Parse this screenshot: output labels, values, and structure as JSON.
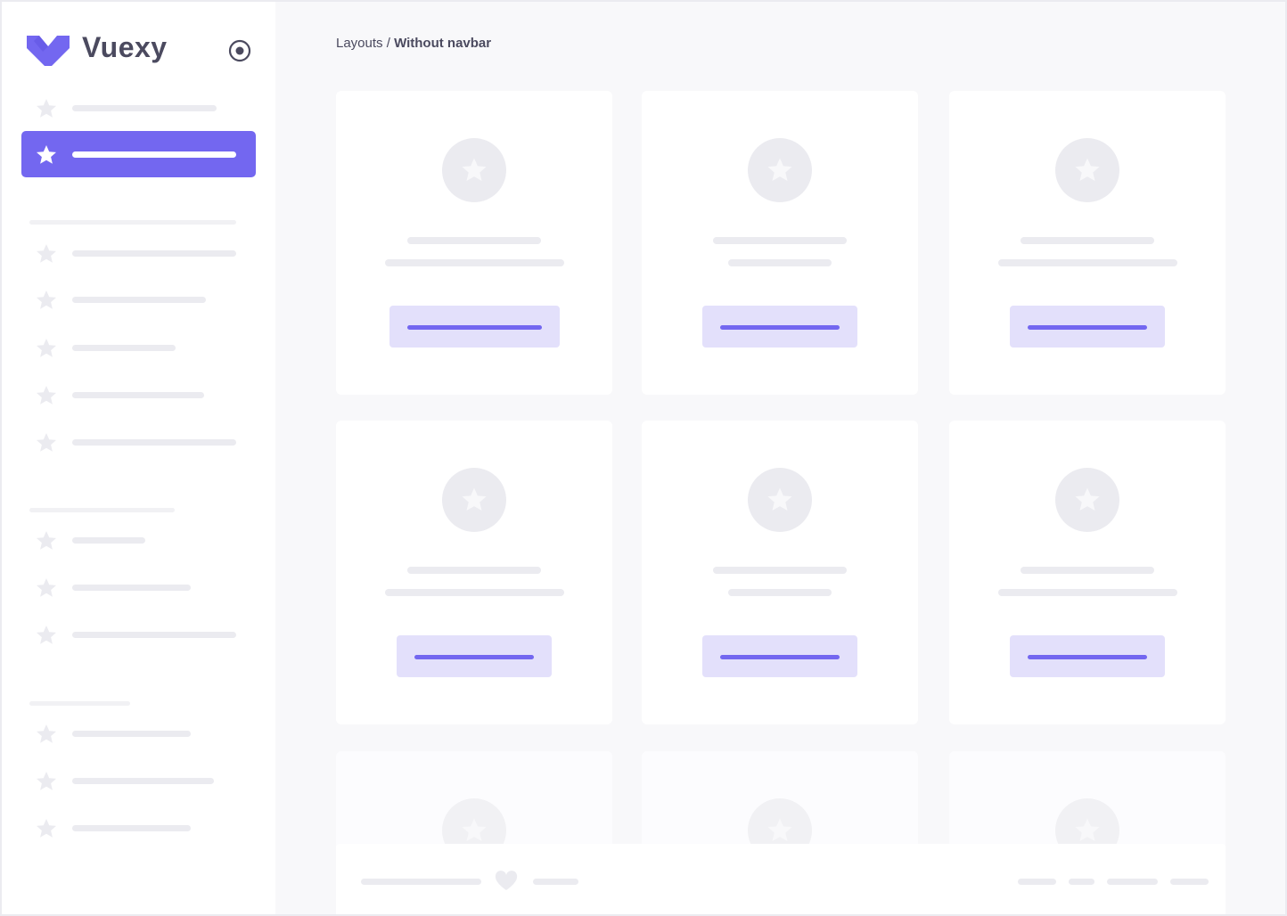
{
  "brand": {
    "name": "Vuexy",
    "logo_color": "#7367f0"
  },
  "breadcrumb": {
    "parent": "Layouts",
    "separator": " / ",
    "current": "Without navbar"
  },
  "colors": {
    "accent": "#7367f0",
    "accent_light": "#e3e0fb",
    "skeleton": "#ebebf0",
    "background": "#f8f8fa"
  },
  "sidebar": {
    "toggle_icon": "radio-circle-icon",
    "active_index": 1,
    "groups": [
      2,
      5,
      3,
      3
    ]
  },
  "cards": {
    "count": 9,
    "icon": "star-icon"
  },
  "footer": {
    "icon": "heart-icon",
    "links": 4
  }
}
